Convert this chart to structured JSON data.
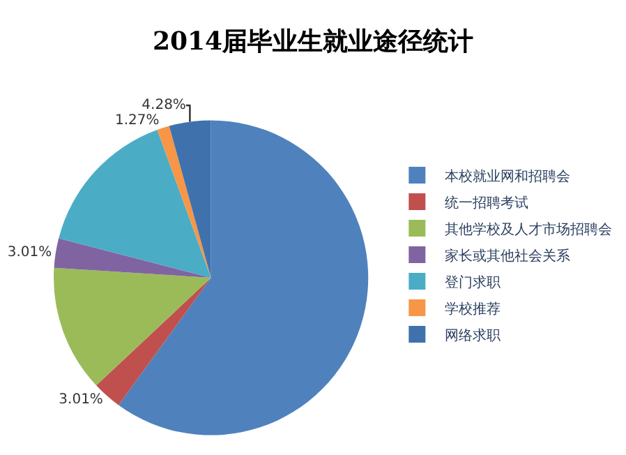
{
  "chart_data": {
    "type": "pie",
    "title": "2014届毕业生就业途径统计",
    "categories": [
      "本校就业网和招聘会",
      "统一招聘考试",
      "其他学校及人才市场招聘会",
      "家长或其他社会关系",
      "登门求职",
      "学校推荐",
      "网络求职"
    ],
    "values": [
      60.0,
      3.01,
      13.0,
      3.01,
      15.43,
      1.27,
      4.28
    ],
    "colors": [
      "#4f81bd",
      "#c0504d",
      "#9bbb59",
      "#8064a2",
      "#4bacc6",
      "#f79646",
      "#3f72ad"
    ],
    "value_labels": [
      null,
      "3.01%",
      null,
      "3.01%",
      null,
      "1.27%",
      "4.28%"
    ],
    "legend": "right"
  }
}
